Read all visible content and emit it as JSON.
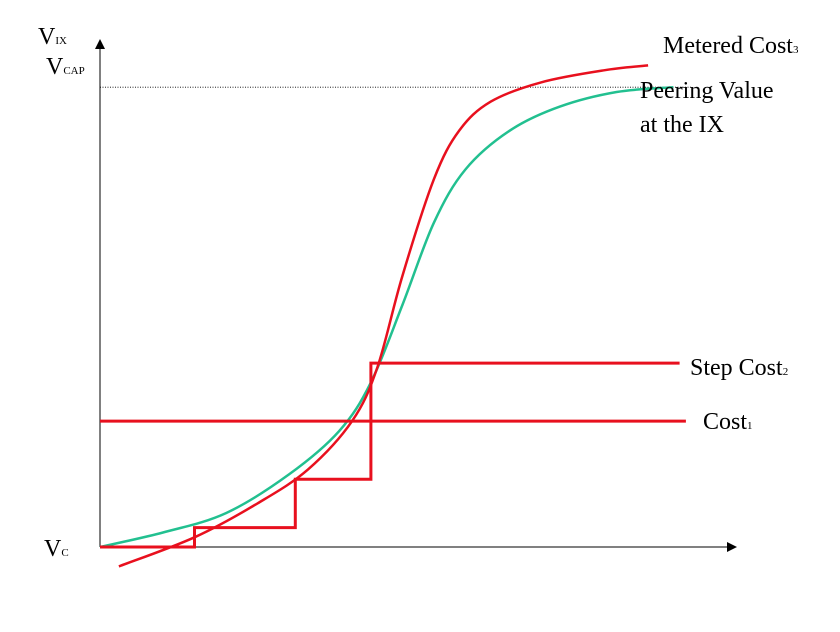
{
  "chart_data": {
    "type": "line",
    "title": "",
    "xlabel": "",
    "ylabel": "",
    "axis_labels": {
      "y_top": {
        "main": "V",
        "sub": "IX"
      },
      "y_cap": {
        "main": "V",
        "sub": "CAP"
      },
      "y_origin": {
        "main": "V",
        "sub": "C"
      }
    },
    "cap_reference_line": {
      "value": 0.95,
      "style": "dotted"
    },
    "series": [
      {
        "name": "Metered Cost",
        "subscript": "3",
        "kind": "metered",
        "color": "#e8101e",
        "points": [
          [
            0.03,
            -0.04
          ],
          [
            0.15,
            0.02
          ],
          [
            0.25,
            0.09
          ],
          [
            0.33,
            0.16
          ],
          [
            0.4,
            0.26
          ],
          [
            0.44,
            0.37
          ],
          [
            0.48,
            0.56
          ],
          [
            0.53,
            0.76
          ],
          [
            0.57,
            0.86
          ],
          [
            0.62,
            0.92
          ],
          [
            0.7,
            0.96
          ],
          [
            0.8,
            0.985
          ],
          [
            0.87,
            0.995
          ]
        ]
      },
      {
        "name": "Peering Value",
        "line2": "at the IX",
        "kind": "value",
        "color": "#22c090",
        "points": [
          [
            0.0,
            0.0
          ],
          [
            0.1,
            0.03
          ],
          [
            0.2,
            0.07
          ],
          [
            0.3,
            0.15
          ],
          [
            0.38,
            0.24
          ],
          [
            0.43,
            0.34
          ],
          [
            0.48,
            0.5
          ],
          [
            0.53,
            0.67
          ],
          [
            0.58,
            0.78
          ],
          [
            0.65,
            0.86
          ],
          [
            0.73,
            0.91
          ],
          [
            0.82,
            0.94
          ],
          [
            0.91,
            0.95
          ]
        ]
      },
      {
        "name": "Step Cost",
        "subscript": "2",
        "kind": "step",
        "color": "#e8101e",
        "points": [
          [
            0.0,
            0.0
          ],
          [
            0.15,
            0.0
          ],
          [
            0.15,
            0.04
          ],
          [
            0.31,
            0.04
          ],
          [
            0.31,
            0.14
          ],
          [
            0.43,
            0.14
          ],
          [
            0.43,
            0.38
          ],
          [
            0.92,
            0.38
          ]
        ]
      },
      {
        "name": "Cost",
        "subscript": "1",
        "kind": "flat",
        "color": "#e8101e",
        "points": [
          [
            0.0,
            0.26
          ],
          [
            0.93,
            0.26
          ]
        ]
      }
    ],
    "xlim": [
      0,
      1
    ],
    "ylim": [
      0,
      1
    ],
    "grid": false
  }
}
